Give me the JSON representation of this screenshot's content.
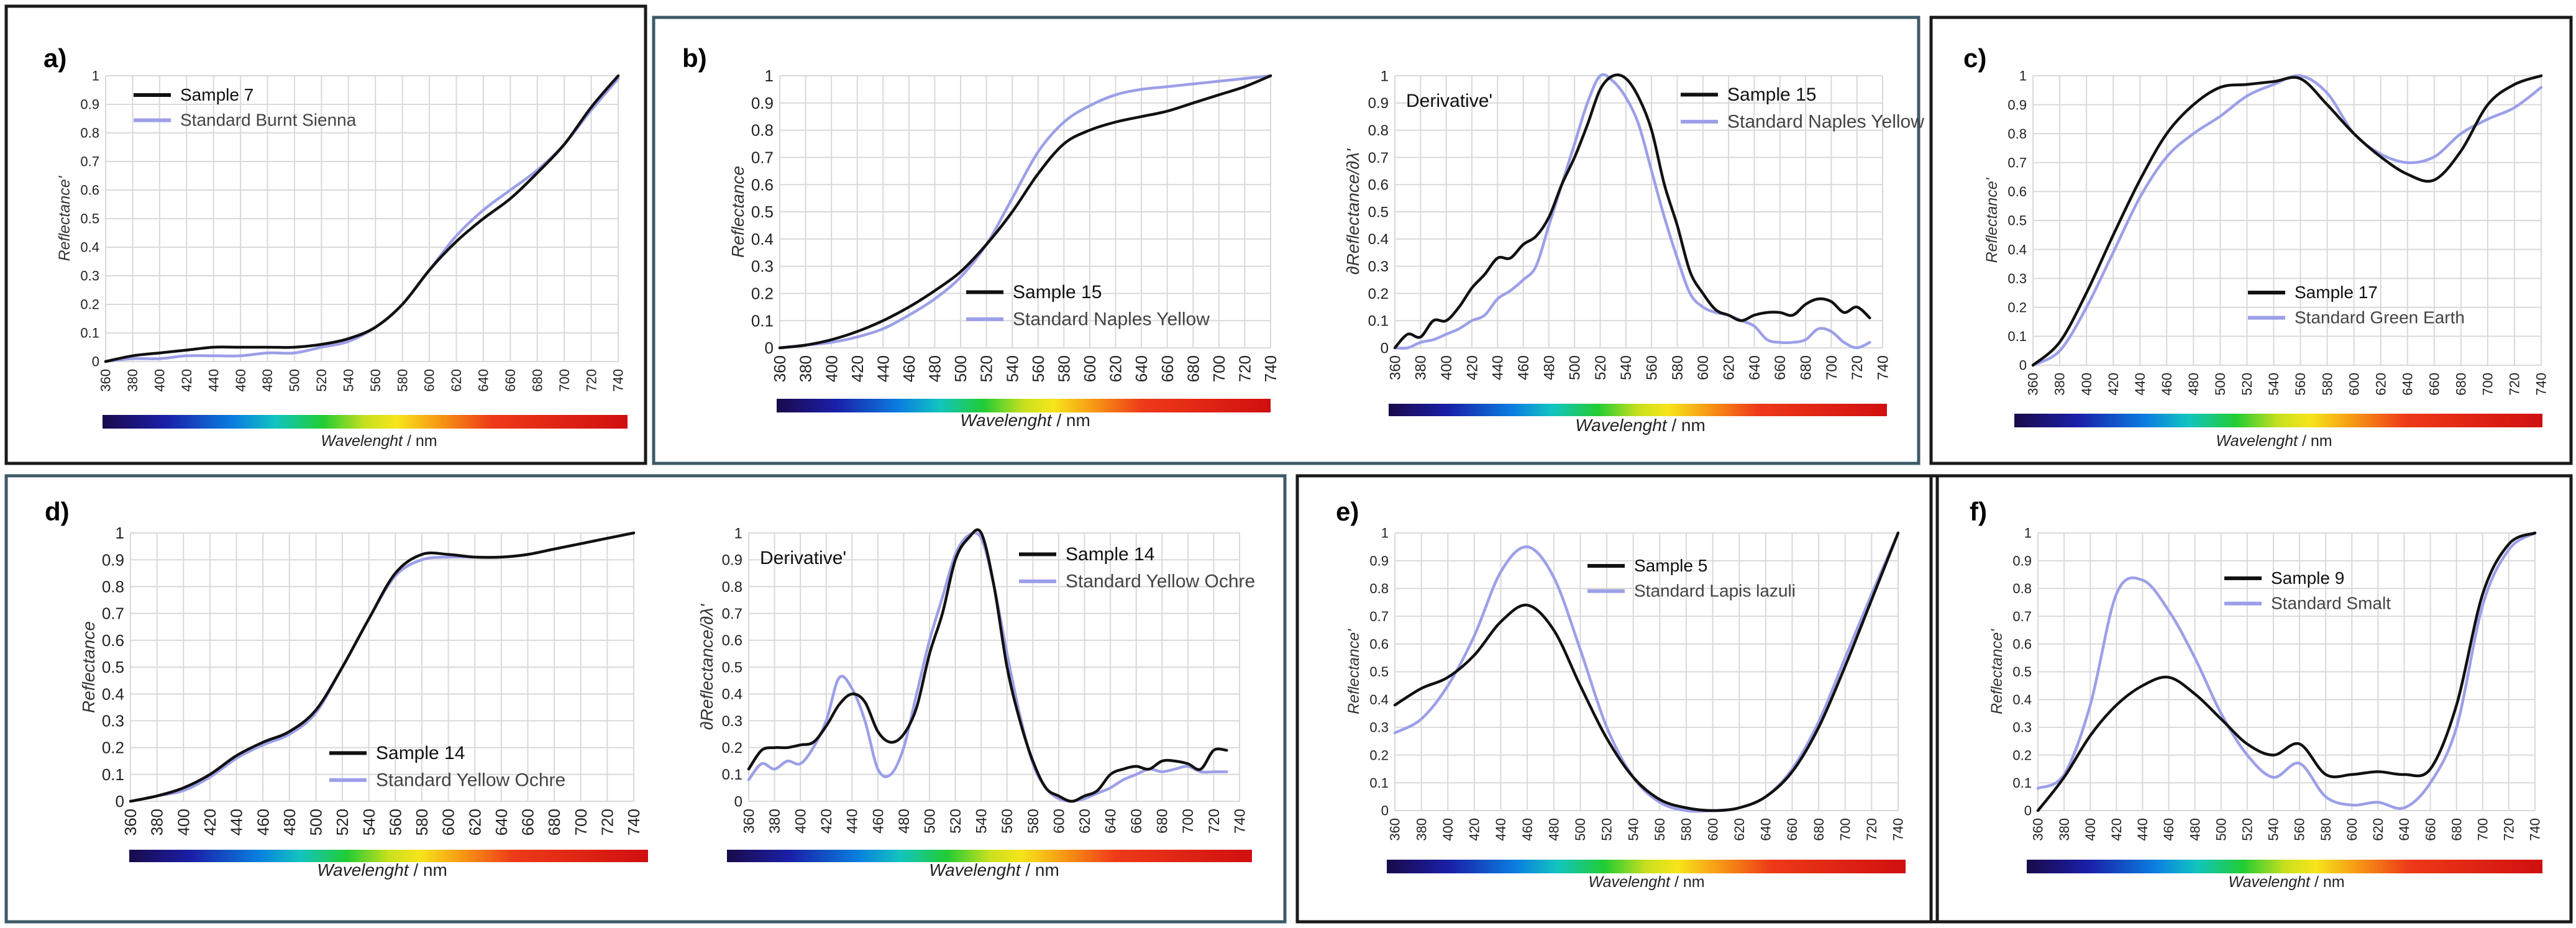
{
  "colors": {
    "sample": "#111111",
    "standard": "#9c9fe8",
    "grid": "#d9d9d9",
    "frame_black": "#1a1a1a",
    "frame_teal": "#3d5a68"
  },
  "common": {
    "xlabel": "Wavelenght / nm",
    "xticks": [
      360,
      380,
      400,
      420,
      440,
      460,
      480,
      500,
      520,
      540,
      560,
      580,
      600,
      620,
      640,
      660,
      680,
      700,
      720,
      740
    ],
    "yticks": [
      "0",
      "0.1",
      "0.2",
      "0.3",
      "0.4",
      "0.5",
      "0.6",
      "0.7",
      "0.8",
      "0.9",
      "1"
    ]
  },
  "panels": [
    {
      "label": "a)",
      "frame": "black"
    },
    {
      "label": "b)",
      "frame": "teal"
    },
    {
      "label": "c)",
      "frame": "black"
    },
    {
      "label": "d)",
      "frame": "teal"
    },
    {
      "label": "e)",
      "frame": "black"
    },
    {
      "label": "f)",
      "frame": "black"
    }
  ],
  "chart_data": [
    {
      "id": "a",
      "type": "line",
      "title": "",
      "xlabel": "Wavelenght / nm",
      "ylabel": "Reflectance'",
      "xlim": [
        360,
        740
      ],
      "ylim": [
        0,
        1
      ],
      "legend_position": "top-left",
      "series": [
        {
          "name": "Sample 7",
          "x": [
            360,
            380,
            400,
            420,
            440,
            460,
            480,
            500,
            520,
            540,
            560,
            580,
            600,
            620,
            640,
            660,
            680,
            700,
            720,
            740
          ],
          "y": [
            0,
            0.02,
            0.03,
            0.04,
            0.05,
            0.05,
            0.05,
            0.05,
            0.06,
            0.08,
            0.12,
            0.2,
            0.32,
            0.42,
            0.5,
            0.57,
            0.66,
            0.76,
            0.89,
            1.0
          ]
        },
        {
          "name": "Standard Burnt Sienna",
          "x": [
            360,
            380,
            400,
            420,
            440,
            460,
            480,
            500,
            520,
            540,
            560,
            580,
            600,
            620,
            640,
            660,
            680,
            700,
            720,
            740
          ],
          "y": [
            0,
            0.01,
            0.01,
            0.02,
            0.02,
            0.02,
            0.03,
            0.03,
            0.05,
            0.07,
            0.12,
            0.2,
            0.32,
            0.44,
            0.53,
            0.6,
            0.67,
            0.76,
            0.88,
            0.99
          ]
        }
      ]
    },
    {
      "id": "b1",
      "type": "line",
      "title": "",
      "xlabel": "Wavelenght / nm",
      "ylabel": "Reflectance",
      "xlim": [
        360,
        740
      ],
      "ylim": [
        0,
        1
      ],
      "legend_position": "bottom-right",
      "series": [
        {
          "name": "Sample 15",
          "x": [
            360,
            380,
            400,
            420,
            440,
            460,
            480,
            500,
            520,
            540,
            560,
            580,
            600,
            620,
            640,
            660,
            680,
            700,
            720,
            740
          ],
          "y": [
            0,
            0.01,
            0.03,
            0.06,
            0.1,
            0.15,
            0.21,
            0.28,
            0.38,
            0.5,
            0.64,
            0.75,
            0.8,
            0.83,
            0.85,
            0.87,
            0.9,
            0.93,
            0.96,
            1.0
          ]
        },
        {
          "name": "Standard Naples Yellow",
          "x": [
            360,
            380,
            400,
            420,
            440,
            460,
            480,
            500,
            520,
            540,
            560,
            580,
            600,
            620,
            640,
            660,
            680,
            700,
            720,
            740
          ],
          "y": [
            0,
            0.01,
            0.02,
            0.04,
            0.07,
            0.12,
            0.18,
            0.26,
            0.38,
            0.55,
            0.72,
            0.83,
            0.89,
            0.93,
            0.95,
            0.96,
            0.97,
            0.98,
            0.99,
            1.0
          ]
        }
      ]
    },
    {
      "id": "b2",
      "type": "line",
      "title": "Derivative'",
      "xlabel": "Wavelenght / nm",
      "ylabel": "∂Reflectance/∂λ'",
      "xlim": [
        360,
        740
      ],
      "ylim": [
        0,
        1
      ],
      "legend_position": "top-right",
      "series": [
        {
          "name": "Sample 15",
          "x": [
            360,
            370,
            380,
            390,
            400,
            410,
            420,
            430,
            440,
            450,
            460,
            470,
            480,
            490,
            500,
            510,
            520,
            530,
            540,
            550,
            560,
            570,
            580,
            590,
            600,
            610,
            620,
            630,
            640,
            650,
            660,
            670,
            680,
            690,
            700,
            710,
            720,
            730
          ],
          "y": [
            0,
            0.05,
            0.04,
            0.1,
            0.1,
            0.15,
            0.22,
            0.27,
            0.33,
            0.33,
            0.38,
            0.41,
            0.48,
            0.6,
            0.7,
            0.82,
            0.95,
            1.0,
            0.99,
            0.92,
            0.8,
            0.6,
            0.45,
            0.28,
            0.2,
            0.14,
            0.12,
            0.1,
            0.12,
            0.13,
            0.13,
            0.12,
            0.16,
            0.18,
            0.17,
            0.13,
            0.15,
            0.11
          ]
        },
        {
          "name": "Standard Naples Yellow",
          "x": [
            360,
            370,
            380,
            390,
            400,
            410,
            420,
            430,
            440,
            450,
            460,
            470,
            480,
            490,
            500,
            510,
            520,
            530,
            540,
            550,
            560,
            570,
            580,
            590,
            600,
            610,
            620,
            630,
            640,
            650,
            660,
            670,
            680,
            690,
            700,
            710,
            720,
            730
          ],
          "y": [
            0,
            0,
            0.02,
            0.03,
            0.05,
            0.07,
            0.1,
            0.12,
            0.18,
            0.21,
            0.25,
            0.3,
            0.45,
            0.6,
            0.75,
            0.9,
            1.0,
            0.98,
            0.92,
            0.82,
            0.65,
            0.48,
            0.33,
            0.2,
            0.15,
            0.13,
            0.12,
            0.1,
            0.08,
            0.03,
            0.02,
            0.02,
            0.03,
            0.07,
            0.06,
            0.02,
            0,
            0.02
          ]
        }
      ]
    },
    {
      "id": "c",
      "type": "line",
      "title": "",
      "xlabel": "Wavelenght / nm",
      "ylabel": "Reflectance'",
      "xlim": [
        360,
        740
      ],
      "ylim": [
        0,
        1
      ],
      "legend_position": "bottom-right",
      "series": [
        {
          "name": "Sample 17",
          "x": [
            360,
            380,
            400,
            420,
            440,
            460,
            480,
            500,
            520,
            540,
            560,
            580,
            600,
            620,
            640,
            660,
            680,
            700,
            720,
            740
          ],
          "y": [
            0,
            0.08,
            0.25,
            0.45,
            0.64,
            0.8,
            0.9,
            0.96,
            0.97,
            0.98,
            0.99,
            0.9,
            0.8,
            0.72,
            0.66,
            0.64,
            0.74,
            0.9,
            0.97,
            1.0
          ]
        },
        {
          "name": "Standard Green Earth",
          "x": [
            360,
            380,
            400,
            420,
            440,
            460,
            480,
            500,
            520,
            540,
            560,
            580,
            600,
            620,
            640,
            660,
            680,
            700,
            720,
            740
          ],
          "y": [
            0,
            0.05,
            0.2,
            0.39,
            0.58,
            0.72,
            0.8,
            0.86,
            0.93,
            0.97,
            1.0,
            0.94,
            0.8,
            0.73,
            0.7,
            0.72,
            0.8,
            0.85,
            0.89,
            0.96
          ]
        }
      ]
    },
    {
      "id": "d1",
      "type": "line",
      "title": "",
      "xlabel": "Wavelenght / nm",
      "ylabel": "Reflectance",
      "xlim": [
        360,
        740
      ],
      "ylim": [
        0,
        1
      ],
      "legend_position": "bottom-right",
      "series": [
        {
          "name": "Sample 14",
          "x": [
            360,
            380,
            400,
            420,
            440,
            460,
            480,
            500,
            520,
            540,
            560,
            580,
            600,
            620,
            640,
            660,
            680,
            700,
            720,
            740
          ],
          "y": [
            0,
            0.02,
            0.05,
            0.1,
            0.17,
            0.22,
            0.26,
            0.34,
            0.5,
            0.68,
            0.85,
            0.92,
            0.92,
            0.91,
            0.91,
            0.92,
            0.94,
            0.96,
            0.98,
            1.0
          ]
        },
        {
          "name": "Standard Yellow Ochre",
          "x": [
            360,
            380,
            400,
            420,
            440,
            460,
            480,
            500,
            520,
            540,
            560,
            580,
            600,
            620,
            640,
            660,
            680,
            700,
            720,
            740
          ],
          "y": [
            0,
            0.02,
            0.04,
            0.09,
            0.16,
            0.21,
            0.25,
            0.33,
            0.5,
            0.68,
            0.84,
            0.9,
            0.91,
            0.91,
            0.91,
            0.92,
            0.94,
            0.96,
            0.98,
            1.0
          ]
        }
      ]
    },
    {
      "id": "d2",
      "type": "line",
      "title": "Derivative'",
      "xlabel": "Wavelenght / nm",
      "ylabel": "∂Reflectance/∂λ'",
      "xlim": [
        360,
        740
      ],
      "ylim": [
        0,
        1
      ],
      "legend_position": "top-right",
      "series": [
        {
          "name": "Sample 14",
          "x": [
            360,
            370,
            380,
            390,
            400,
            410,
            420,
            430,
            440,
            450,
            460,
            470,
            480,
            490,
            500,
            510,
            520,
            530,
            540,
            550,
            560,
            570,
            580,
            590,
            600,
            610,
            620,
            630,
            640,
            650,
            660,
            670,
            680,
            690,
            700,
            710,
            720,
            730
          ],
          "y": [
            0.12,
            0.19,
            0.2,
            0.2,
            0.21,
            0.22,
            0.28,
            0.36,
            0.4,
            0.37,
            0.26,
            0.22,
            0.25,
            0.35,
            0.55,
            0.7,
            0.9,
            0.98,
            1.0,
            0.8,
            0.5,
            0.3,
            0.15,
            0.05,
            0.02,
            0,
            0.02,
            0.04,
            0.1,
            0.12,
            0.13,
            0.12,
            0.15,
            0.15,
            0.14,
            0.12,
            0.19,
            0.19
          ]
        },
        {
          "name": "Standard Yellow Ochre",
          "x": [
            360,
            370,
            380,
            390,
            400,
            410,
            420,
            430,
            440,
            450,
            460,
            470,
            480,
            490,
            500,
            510,
            520,
            530,
            540,
            550,
            560,
            570,
            580,
            590,
            600,
            610,
            620,
            630,
            640,
            650,
            660,
            670,
            680,
            690,
            700,
            710,
            720,
            730
          ],
          "y": [
            0.08,
            0.14,
            0.12,
            0.15,
            0.14,
            0.2,
            0.3,
            0.46,
            0.42,
            0.3,
            0.12,
            0.1,
            0.2,
            0.4,
            0.6,
            0.76,
            0.92,
            0.99,
            0.98,
            0.8,
            0.55,
            0.32,
            0.14,
            0.05,
            0.01,
            0,
            0.01,
            0.03,
            0.05,
            0.08,
            0.1,
            0.12,
            0.11,
            0.12,
            0.13,
            0.11,
            0.11,
            0.11
          ]
        }
      ]
    },
    {
      "id": "e",
      "type": "line",
      "title": "",
      "xlabel": "Wavelenght / nm",
      "ylabel": "Reflectance'",
      "xlim": [
        360,
        740
      ],
      "ylim": [
        0,
        1
      ],
      "legend_position": "top-right",
      "series": [
        {
          "name": "Sample 5",
          "x": [
            360,
            380,
            400,
            420,
            440,
            460,
            480,
            500,
            520,
            540,
            560,
            580,
            600,
            620,
            640,
            660,
            680,
            700,
            720,
            740
          ],
          "y": [
            0.38,
            0.44,
            0.48,
            0.56,
            0.68,
            0.74,
            0.65,
            0.45,
            0.26,
            0.12,
            0.04,
            0.01,
            0,
            0.01,
            0.05,
            0.14,
            0.3,
            0.52,
            0.76,
            1.0
          ]
        },
        {
          "name": "Standard Lapis lazuli",
          "x": [
            360,
            380,
            400,
            420,
            440,
            460,
            480,
            500,
            520,
            540,
            560,
            580,
            600,
            620,
            640,
            660,
            680,
            700,
            720,
            740
          ],
          "y": [
            0.28,
            0.33,
            0.45,
            0.63,
            0.86,
            0.95,
            0.84,
            0.58,
            0.3,
            0.12,
            0.03,
            0,
            0,
            0.01,
            0.05,
            0.15,
            0.32,
            0.55,
            0.78,
            1.0
          ]
        }
      ]
    },
    {
      "id": "f",
      "type": "line",
      "title": "",
      "xlabel": "Wavelenght / nm",
      "ylabel": "Reflectance'",
      "xlim": [
        360,
        740
      ],
      "ylim": [
        0,
        1
      ],
      "legend_position": "top-right",
      "series": [
        {
          "name": "Sample 9",
          "x": [
            360,
            380,
            400,
            420,
            440,
            460,
            480,
            500,
            520,
            540,
            560,
            580,
            600,
            620,
            640,
            660,
            680,
            700,
            720,
            740
          ],
          "y": [
            0,
            0.12,
            0.27,
            0.38,
            0.45,
            0.48,
            0.42,
            0.33,
            0.24,
            0.2,
            0.24,
            0.13,
            0.13,
            0.14,
            0.13,
            0.15,
            0.38,
            0.78,
            0.96,
            1.0
          ]
        },
        {
          "name": "Standard Smalt",
          "x": [
            360,
            380,
            400,
            420,
            440,
            460,
            480,
            500,
            520,
            540,
            560,
            580,
            600,
            620,
            640,
            660,
            680,
            700,
            720,
            740
          ],
          "y": [
            0.08,
            0.13,
            0.38,
            0.78,
            0.83,
            0.72,
            0.55,
            0.35,
            0.2,
            0.12,
            0.17,
            0.05,
            0.02,
            0.03,
            0.01,
            0.1,
            0.3,
            0.74,
            0.94,
            1.0
          ]
        }
      ]
    }
  ]
}
